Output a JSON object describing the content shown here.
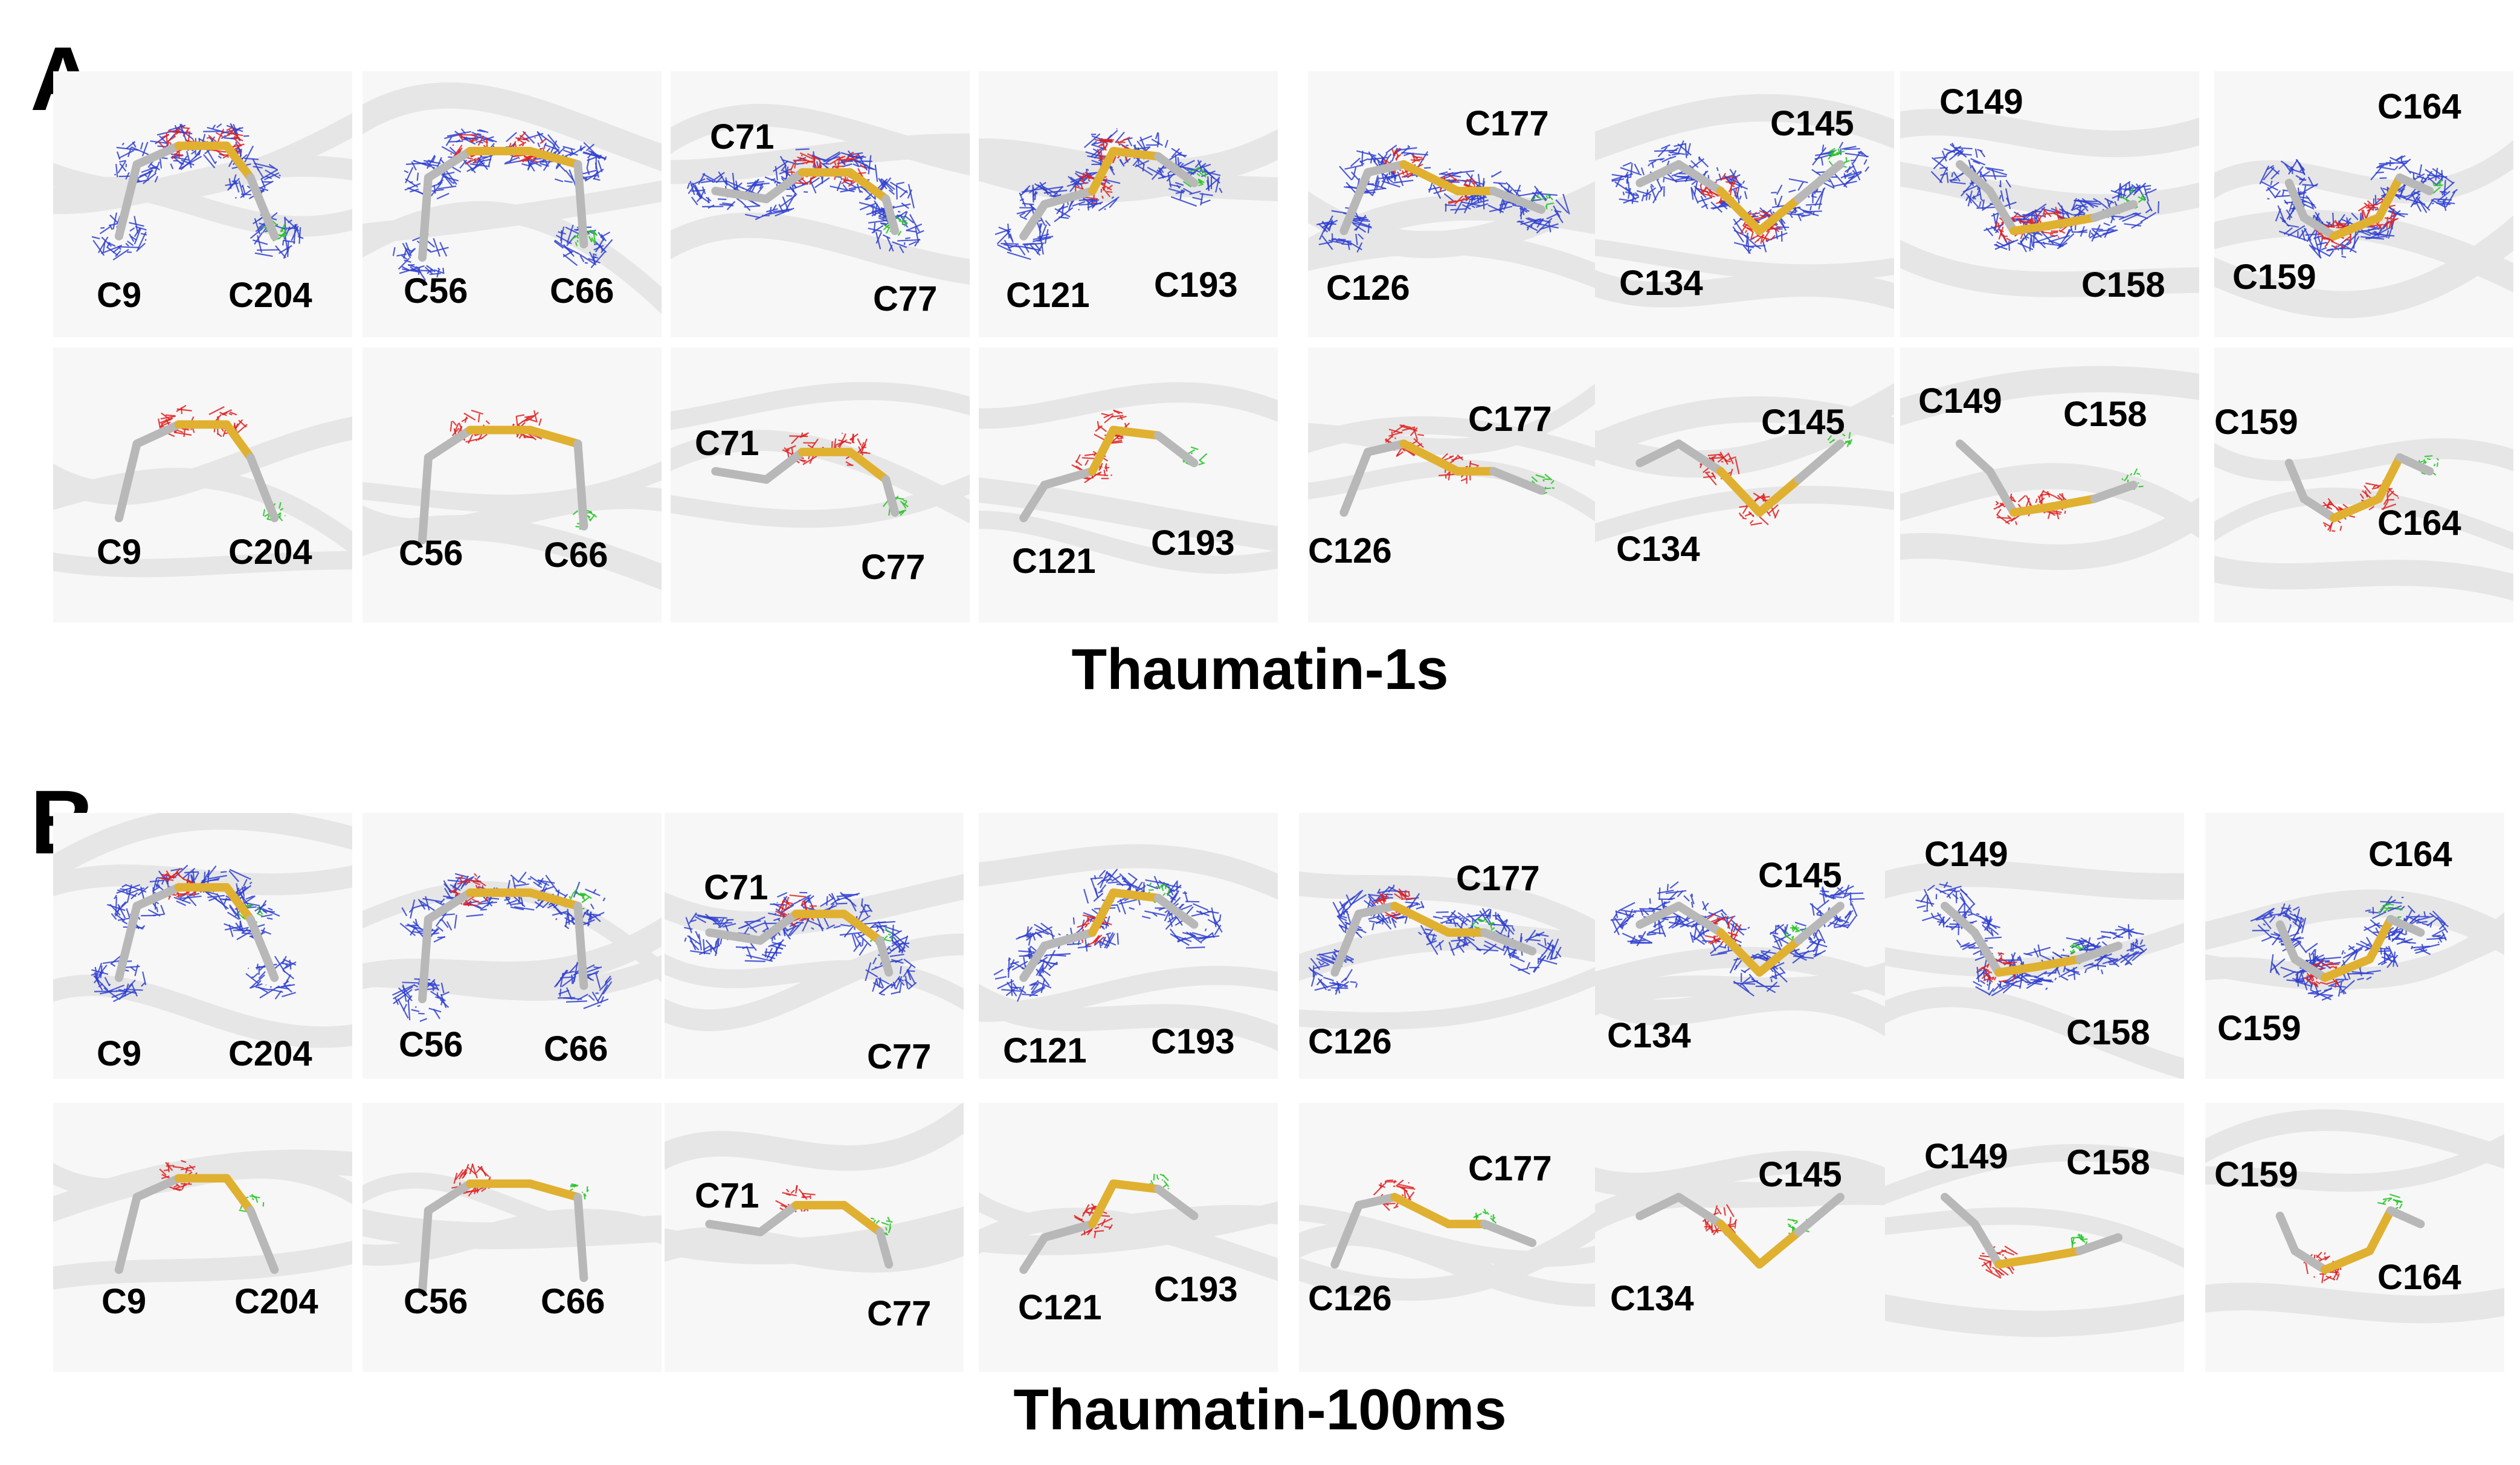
{
  "panels": [
    {
      "letter": "A",
      "caption": "Thaumatin-1s",
      "rows": [
        {
          "kind": "map",
          "tiles": [
            {
              "first": "C9",
              "second": "C204"
            },
            {
              "first": "C56",
              "second": "C66"
            },
            {
              "first": "C71",
              "second": "C77"
            },
            {
              "first": "C121",
              "second": "C193"
            },
            {
              "first": "C126",
              "second": "C177"
            },
            {
              "first": "C134",
              "second": "C145"
            },
            {
              "first": "C149",
              "second": "C158"
            },
            {
              "first": "C159",
              "second": "C164"
            }
          ]
        },
        {
          "kind": "difference",
          "tiles": [
            {
              "first": "C9",
              "second": "C204"
            },
            {
              "first": "C56",
              "second": "C66"
            },
            {
              "first": "C71",
              "second": "C77"
            },
            {
              "first": "C121",
              "second": "C193"
            },
            {
              "first": "C126",
              "second": "C177"
            },
            {
              "first": "C134",
              "second": "C145"
            },
            {
              "first": "C149",
              "second": "C158"
            },
            {
              "first": "C159",
              "second": "C164"
            }
          ]
        }
      ]
    },
    {
      "letter": "B",
      "caption": "Thaumatin-100ms",
      "rows": [
        {
          "kind": "map",
          "tiles": [
            {
              "first": "C9",
              "second": "C204"
            },
            {
              "first": "C56",
              "second": "C66"
            },
            {
              "first": "C71",
              "second": "C77"
            },
            {
              "first": "C121",
              "second": "C193"
            },
            {
              "first": "C126",
              "second": "C177"
            },
            {
              "first": "C134",
              "second": "C145"
            },
            {
              "first": "C149",
              "second": "C158"
            },
            {
              "first": "C159",
              "second": "C164"
            }
          ]
        },
        {
          "kind": "difference",
          "tiles": [
            {
              "first": "C9",
              "second": "C204"
            },
            {
              "first": "C56",
              "second": "C66"
            },
            {
              "first": "C71",
              "second": "C77"
            },
            {
              "first": "C121",
              "second": "C193"
            },
            {
              "first": "C126",
              "second": "C177"
            },
            {
              "first": "C134",
              "second": "C145"
            },
            {
              "first": "C149",
              "second": "C158"
            },
            {
              "first": "C159",
              "second": "C164"
            }
          ]
        }
      ]
    }
  ],
  "colors": {
    "blue_mesh": "#2f3fd0",
    "red_mesh": "#e02020",
    "green_mesh": "#22c422",
    "carbon": "#b8b8b8",
    "sulfur": "#e0b030",
    "background_ribbon": "#e6e6e6"
  }
}
